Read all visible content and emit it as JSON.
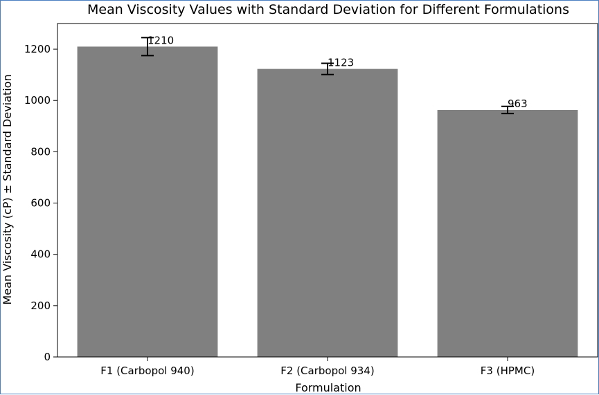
{
  "chart_data": {
    "type": "bar",
    "title": "Mean Viscosity Values with Standard Deviation for Different Formulations",
    "xlabel": "Formulation",
    "ylabel": "Mean Viscosity (cP) ± Standard Deviation",
    "categories": [
      "F1 (Carbopol 940)",
      "F2 (Carbopol 934)",
      "F3 (HPMC)"
    ],
    "values": [
      1210,
      1123,
      963
    ],
    "errors": [
      35,
      22,
      14
    ],
    "data_labels": [
      "1210",
      "1123",
      "963"
    ],
    "ylim": [
      0,
      1300
    ],
    "yticks": [
      0,
      200,
      400,
      600,
      800,
      1000,
      1200
    ],
    "grid": false,
    "legend": "none",
    "bar_color": "#808080",
    "error_color": "#000000"
  }
}
